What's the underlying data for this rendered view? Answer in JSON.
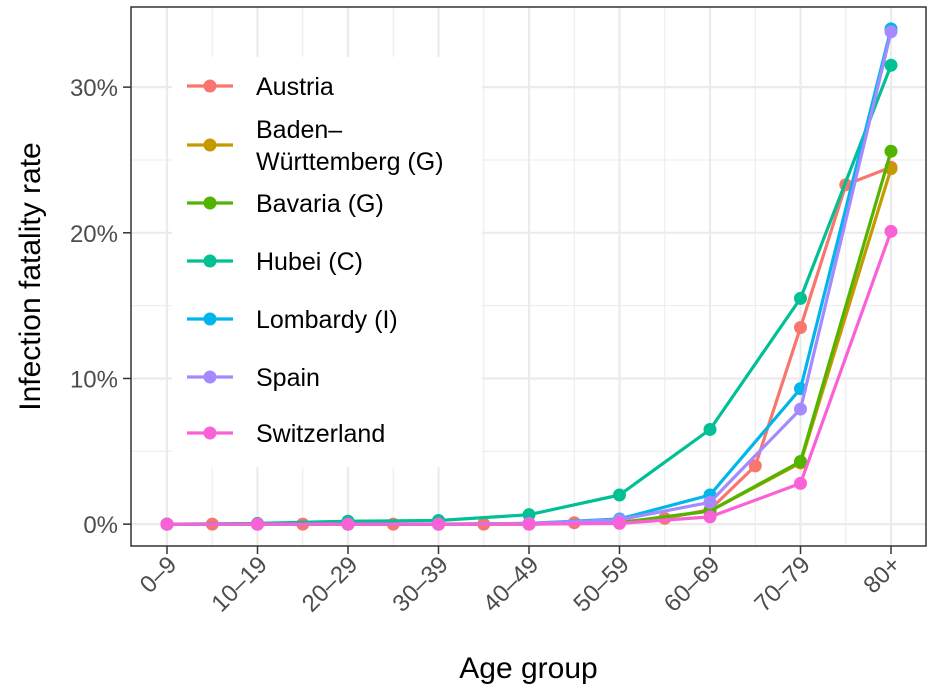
{
  "chart_data": {
    "type": "line",
    "title": "",
    "xlabel": "Age group",
    "ylabel": "Infection fatality rate",
    "categories": [
      "0–9",
      "10–19",
      "20–29",
      "30–39",
      "40–49",
      "50–59",
      "60–69",
      "70–79",
      "80+"
    ],
    "ylim": [
      -1.5,
      35.5
    ],
    "yticks": [
      0,
      10,
      20,
      30
    ],
    "ytick_labels": [
      "0%",
      "10%",
      "20%",
      "30%"
    ],
    "grid": true,
    "legend_position": "top-left",
    "series": [
      {
        "name": "Austria",
        "color": "#F8766D",
        "points": [
          [
            0,
            0.0
          ],
          [
            0.5,
            0.0
          ],
          [
            1,
            0.0
          ],
          [
            1.5,
            0.0
          ],
          [
            2,
            0.0
          ],
          [
            2.5,
            0.0
          ],
          [
            3,
            0.0
          ],
          [
            3.5,
            0.0
          ],
          [
            4,
            0.05
          ],
          [
            4.5,
            0.1
          ],
          [
            5,
            0.15
          ],
          [
            5.5,
            0.4
          ],
          [
            6,
            1.0
          ],
          [
            6.5,
            4.0
          ],
          [
            7,
            13.5
          ],
          [
            7.5,
            23.3
          ],
          [
            8,
            24.5
          ]
        ]
      },
      {
        "name": "Baden–\nWürttemberg (G)",
        "color": "#C49A00",
        "points": [
          [
            0,
            0.0
          ],
          [
            1,
            0.0
          ],
          [
            2,
            0.0
          ],
          [
            3,
            0.0
          ],
          [
            4,
            0.0
          ],
          [
            5,
            0.1
          ],
          [
            6,
            0.9
          ],
          [
            7,
            4.2
          ],
          [
            8,
            24.4
          ]
        ]
      },
      {
        "name": "Bavaria (G)",
        "color": "#53B400",
        "points": [
          [
            0,
            0.0
          ],
          [
            1,
            0.0
          ],
          [
            2,
            0.0
          ],
          [
            3,
            0.0
          ],
          [
            4,
            0.0
          ],
          [
            5,
            0.1
          ],
          [
            6,
            0.9
          ],
          [
            7,
            4.3
          ],
          [
            8,
            25.6
          ]
        ]
      },
      {
        "name": "Hubei (C)",
        "color": "#00C094",
        "points": [
          [
            0,
            0.0
          ],
          [
            1,
            0.05
          ],
          [
            2,
            0.2
          ],
          [
            3,
            0.25
          ],
          [
            4,
            0.65
          ],
          [
            5,
            2.0
          ],
          [
            6,
            6.5
          ],
          [
            7,
            15.5
          ],
          [
            8,
            31.5
          ]
        ]
      },
      {
        "name": "Lombardy (I)",
        "color": "#00B6EB",
        "points": [
          [
            0,
            0.0
          ],
          [
            1,
            0.0
          ],
          [
            2,
            0.0
          ],
          [
            3,
            0.0
          ],
          [
            4,
            0.05
          ],
          [
            5,
            0.35
          ],
          [
            6,
            2.0
          ],
          [
            7,
            9.3
          ],
          [
            8,
            34.0
          ]
        ]
      },
      {
        "name": "Spain",
        "color": "#A58AFF",
        "points": [
          [
            0,
            0.0
          ],
          [
            1,
            0.0
          ],
          [
            2,
            0.0
          ],
          [
            3,
            0.0
          ],
          [
            4,
            0.05
          ],
          [
            5,
            0.3
          ],
          [
            6,
            1.5
          ],
          [
            7,
            7.9
          ],
          [
            8,
            33.8
          ]
        ]
      },
      {
        "name": "Switzerland",
        "color": "#FB61D7",
        "points": [
          [
            0,
            0.0
          ],
          [
            1,
            0.0
          ],
          [
            2,
            0.0
          ],
          [
            3,
            0.0
          ],
          [
            4,
            0.0
          ],
          [
            5,
            0.05
          ],
          [
            6,
            0.5
          ],
          [
            7,
            2.8
          ],
          [
            8,
            20.1
          ]
        ]
      }
    ]
  }
}
